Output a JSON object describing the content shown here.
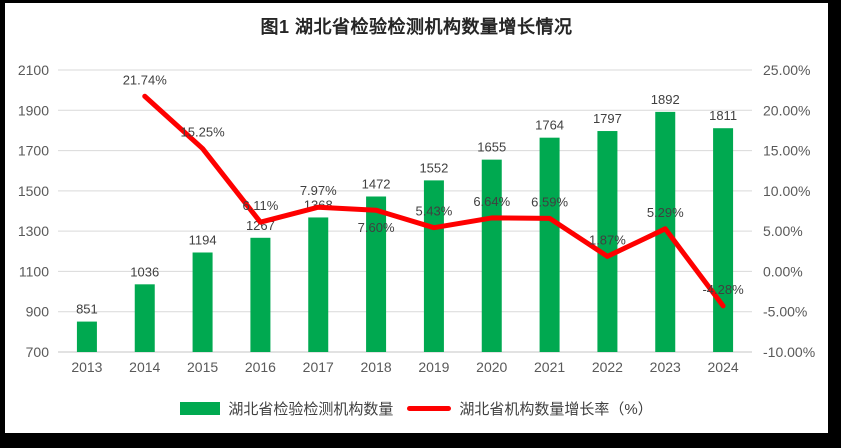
{
  "chart_data": {
    "type": "bar",
    "subtype": "bar+line combo, dual axis",
    "title": "图1 湖北省检验检测机构数量增长情况",
    "categories": [
      "2013",
      "2014",
      "2015",
      "2016",
      "2017",
      "2018",
      "2019",
      "2020",
      "2021",
      "2022",
      "2023",
      "2024"
    ],
    "series": [
      {
        "name": "湖北省检验检测机构数量",
        "type": "bar",
        "axis": "left",
        "color": "#00A950",
        "values": [
          851,
          1036,
          1194,
          1267,
          1368,
          1472,
          1552,
          1655,
          1764,
          1797,
          1892,
          1811
        ],
        "value_labels": [
          "851",
          "1036",
          "1194",
          "1267",
          "1368",
          "1472",
          "1552",
          "1655",
          "1764",
          "1797",
          "1892",
          "1811"
        ]
      },
      {
        "name": "湖北省机构数量增长率（%）",
        "type": "line",
        "axis": "right",
        "color": "#FE0000",
        "x_start_index": 1,
        "values": [
          21.74,
          15.25,
          6.11,
          7.97,
          7.6,
          5.43,
          6.64,
          6.59,
          1.87,
          5.29,
          -4.28
        ],
        "value_labels": [
          "21.74%",
          "15.25%",
          "6.11%",
          "7.97%",
          "7.60%",
          "5.43%",
          "6.64%",
          "6.59%",
          "1.87%",
          "5.29%",
          "-4.28%"
        ],
        "label_positions": [
          "above",
          "above",
          "above",
          "above",
          "below",
          "above",
          "above",
          "above",
          "above",
          "above",
          "above"
        ]
      }
    ],
    "left_axis": {
      "min": 700,
      "max": 2100,
      "ticks_top_to_bottom": [
        "2100",
        "1900",
        "1700",
        "1500",
        "1300",
        "1100",
        "900",
        "700"
      ]
    },
    "right_axis": {
      "min": -10,
      "max": 25,
      "ticks_top_to_bottom": [
        "25.00%",
        "20.00%",
        "15.00%",
        "10.00%",
        "5.00%",
        "0.00%",
        "-5.00%",
        "-10.00%"
      ]
    },
    "grid": true,
    "legend_position": "bottom",
    "legend": [
      "湖北省检验检测机构数量",
      "湖北省机构数量增长率（%）"
    ]
  },
  "style": {
    "bar_color": "#00A950",
    "line_color": "#FE0000",
    "grid_color": "#D9D9D9",
    "axis_line_color": "#C6C6C6",
    "frame_color": "#000000"
  }
}
